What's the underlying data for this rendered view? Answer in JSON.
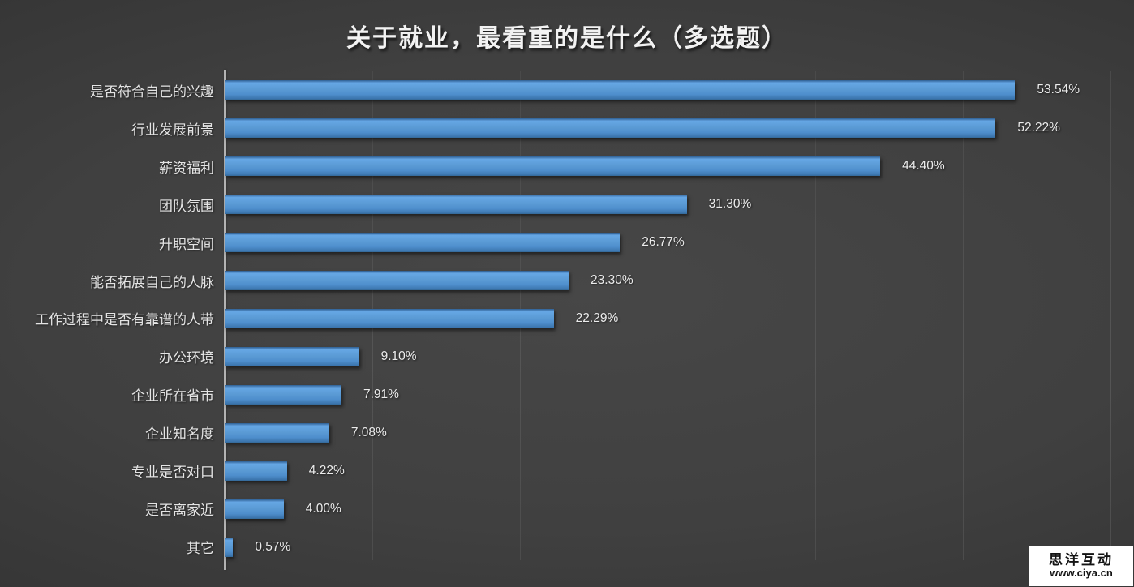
{
  "chart_data": {
    "type": "bar",
    "orientation": "horizontal",
    "title": "关于就业，最看重的是什么（多选题）",
    "categories": [
      "是否符合自己的兴趣",
      "行业发展前景",
      "薪资福利",
      "团队氛围",
      "升职空间",
      "能否拓展自己的人脉",
      "工作过程中是否有靠谱的人带",
      "办公环境",
      "企业所在省市",
      "企业知名度",
      "专业是否对口",
      "是否离家近",
      "其它"
    ],
    "values": [
      53.54,
      52.22,
      44.4,
      31.3,
      26.77,
      23.3,
      22.29,
      9.1,
      7.91,
      7.08,
      4.22,
      4.0,
      0.57
    ],
    "value_labels": [
      "53.54%",
      "52.22%",
      "44.40%",
      "31.30%",
      "26.77%",
      "23.30%",
      "22.29%",
      "9.10%",
      "7.91%",
      "7.08%",
      "4.22%",
      "4.00%",
      "0.57%"
    ],
    "xlabel": "",
    "ylabel": "",
    "xlim": [
      0,
      60
    ],
    "gridline_interval": 10,
    "grid": true,
    "legend": "none",
    "bar_color": "#5b9bd5",
    "gridline_color": "#4e4e4e",
    "axis_color": "#b3b3b3",
    "background_center": "#474747",
    "background_edge": "#262626",
    "text_color": "#ececec"
  },
  "watermark": {
    "line1": "思洋互动",
    "line2": "www.ciya.cn"
  }
}
